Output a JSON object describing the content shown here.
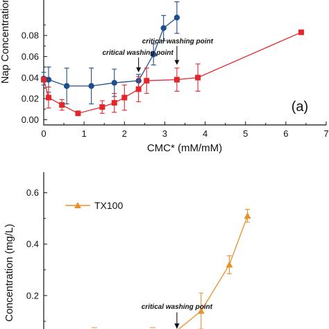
{
  "colors": {
    "blue": "#1f4e8c",
    "red": "#e3262b",
    "orange": "#e8902a",
    "axis": "#111111"
  },
  "chart_data": [
    {
      "type": "scatter",
      "title": "",
      "panel_label": "(a)",
      "xlabel": "CMC* (mM/mM)",
      "ylabel": "Nap Concentration",
      "xlim": [
        0,
        7
      ],
      "ylim": [
        -0.005,
        0.115
      ],
      "x_ticks": [
        "0",
        "1",
        "2",
        "3",
        "4",
        "5",
        "6",
        "7"
      ],
      "y_ticks": [
        "0.00",
        "0.02",
        "0.04",
        "0.06",
        "0.08"
      ],
      "series": [
        {
          "color": "#1f4e8c",
          "marker": "circle",
          "points": [
            {
              "x": 0.0,
              "y": 0.039,
              "err": 0.006
            },
            {
              "x": 0.12,
              "y": 0.038,
              "err": 0.012
            },
            {
              "x": 0.57,
              "y": 0.032,
              "err": 0.017
            },
            {
              "x": 1.18,
              "y": 0.032,
              "err": 0.017
            },
            {
              "x": 1.75,
              "y": 0.035,
              "err": 0.013
            },
            {
              "x": 2.35,
              "y": 0.037,
              "err": 0.006
            },
            {
              "x": 2.72,
              "y": 0.062,
              "err": 0.01
            },
            {
              "x": 2.97,
              "y": 0.087,
              "err": 0.012
            },
            {
              "x": 3.3,
              "y": 0.097,
              "err": 0.015
            }
          ]
        },
        {
          "color": "#e3262b",
          "marker": "square",
          "points": [
            {
              "x": 0.0,
              "y": 0.038,
              "err": 0.002
            },
            {
              "x": 0.12,
              "y": 0.021,
              "err": 0.01
            },
            {
              "x": 0.45,
              "y": 0.014,
              "err": 0.005
            },
            {
              "x": 0.85,
              "y": 0.006,
              "err": 0.0
            },
            {
              "x": 1.45,
              "y": 0.012,
              "err": 0.006
            },
            {
              "x": 1.75,
              "y": 0.016,
              "err": 0.009
            },
            {
              "x": 2.0,
              "y": 0.021,
              "err": 0.012
            },
            {
              "x": 2.35,
              "y": 0.029,
              "err": 0.012
            },
            {
              "x": 2.55,
              "y": 0.037,
              "err": 0.012
            },
            {
              "x": 3.3,
              "y": 0.038,
              "err": 0.011
            },
            {
              "x": 3.82,
              "y": 0.04,
              "err": 0.013
            },
            {
              "x": 6.38,
              "y": 0.083,
              "err": 0.0
            }
          ]
        }
      ],
      "annotations": [
        {
          "text": "critical washing point",
          "x": 2.35,
          "y_from": 0.059,
          "y_to": 0.045
        },
        {
          "text": "critical washing point",
          "x": 3.3,
          "y_from": 0.07,
          "y_to": 0.052
        }
      ]
    },
    {
      "type": "line",
      "title": "",
      "xlabel": "",
      "ylabel": "Concentration (mg/L)",
      "ylim": [
        0.07,
        0.68
      ],
      "y_ticks": [
        "0.2",
        "0.4",
        "0.6"
      ],
      "series": [
        {
          "name": "TX100",
          "color": "#e8902a",
          "marker": "triangle",
          "points": [
            {
              "x": 3.9,
              "y": 0.14,
              "err": 0.07
            },
            {
              "x": 4.6,
              "y": 0.32,
              "err": 0.035
            },
            {
              "x": 5.05,
              "y": 0.51,
              "err": 0.025
            }
          ]
        }
      ],
      "annotations": [
        {
          "text": "critical washing point",
          "x": 3.3,
          "y_from": 0.12,
          "y_to": 0.07
        }
      ]
    }
  ]
}
